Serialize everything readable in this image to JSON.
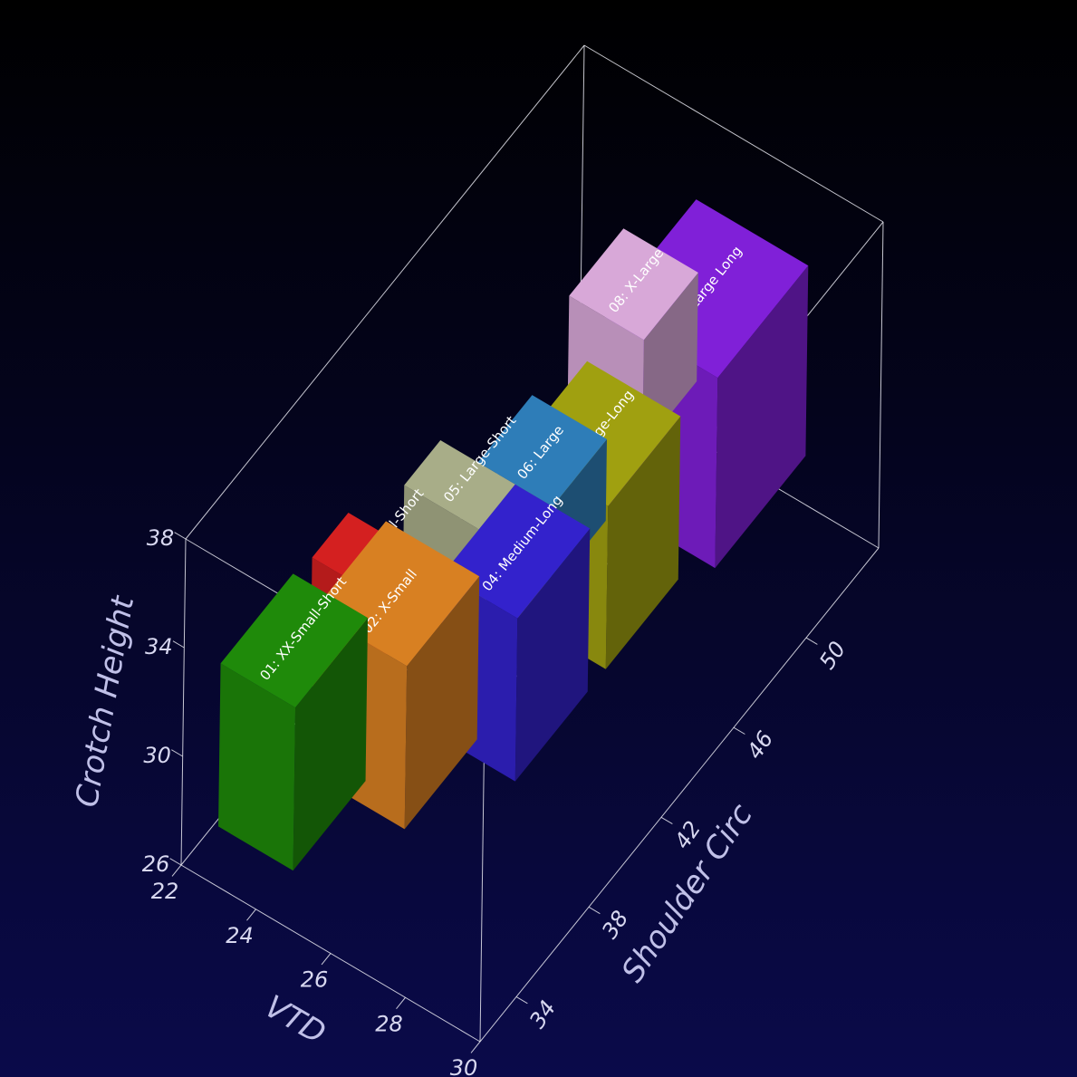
{
  "chart_data": {
    "type": "box3d",
    "x_label": "VTD",
    "y_label": "Shoulder Circ",
    "z_label": "Crotch Height",
    "xlim": [
      22,
      30
    ],
    "xticks": [
      22,
      24,
      26,
      28,
      30
    ],
    "ylim": [
      32,
      54
    ],
    "yticks": [
      34,
      38,
      42,
      46,
      50
    ],
    "zlim": [
      26,
      38
    ],
    "zticks": [
      26,
      30,
      34,
      38
    ],
    "series": [
      {
        "name": "01: XX-Small-Short",
        "color": "#1f8a0a",
        "x": [
          22.5,
          24.5
        ],
        "y": [
          33,
          37
        ],
        "z": [
          27,
          33
        ]
      },
      {
        "name": "02: X-Small",
        "color": "#d88022",
        "x": [
          24,
          26.5
        ],
        "y": [
          35,
          39
        ],
        "z": [
          28.5,
          34.5
        ]
      },
      {
        "name": "03: Small-Short",
        "color": "#d42020",
        "x": [
          23,
          25
        ],
        "y": [
          37,
          39
        ],
        "z": [
          32,
          34
        ]
      },
      {
        "name": "04: Medium-Long",
        "color": "#3322cc",
        "x": [
          26,
          28
        ],
        "y": [
          38,
          42
        ],
        "z": [
          29,
          35
        ]
      },
      {
        "name": "05: Large-Short",
        "color": "#a8ad88",
        "x": [
          24,
          26
        ],
        "y": [
          40,
          42
        ],
        "z": [
          32,
          35
        ]
      },
      {
        "name": "06: Large",
        "color": "#2e7db8",
        "x": [
          25,
          27
        ],
        "y": [
          42,
          45
        ],
        "z": [
          32,
          35
        ]
      },
      {
        "name": "07: Large-Long",
        "color": "#a0a010",
        "x": [
          25.5,
          28
        ],
        "y": [
          43,
          47
        ],
        "z": [
          29,
          35
        ]
      },
      {
        "name": "08: X-Large",
        "color": "#d8a8d8",
        "x": [
          25,
          27
        ],
        "y": [
          47,
          50
        ],
        "z": [
          33,
          37
        ]
      },
      {
        "name": "09: X-Large Long",
        "color": "#8020d8",
        "x": [
          25.5,
          28.5
        ],
        "y": [
          48,
          53
        ],
        "z": [
          29,
          36
        ]
      }
    ]
  }
}
